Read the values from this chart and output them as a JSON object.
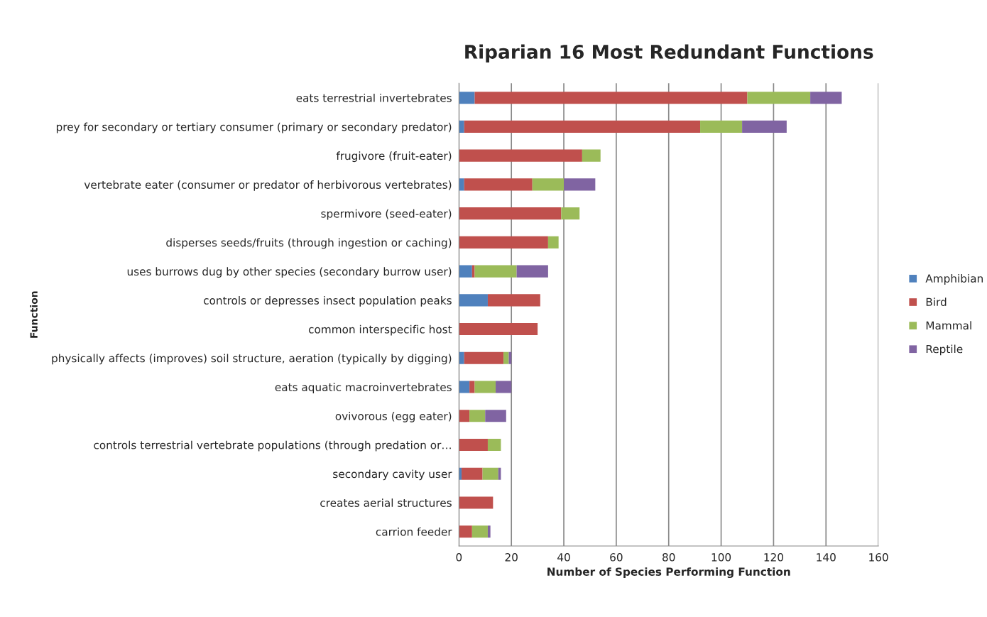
{
  "chart_data": {
    "type": "bar",
    "orientation": "horizontal",
    "stacked": true,
    "title": "Riparian 16 Most Redundant Functions",
    "xlabel": "Number of Species Performing Function",
    "ylabel": "Function",
    "categories": [
      "eats terrestrial invertebrates",
      "prey for secondary or tertiary consumer (primary or secondary predator)",
      "frugivore (fruit-eater)",
      "vertebrate eater (consumer or predator of herbivorous vertebrates)",
      "spermivore (seed-eater)",
      "disperses seeds/fruits (through ingestion or caching)",
      "uses burrows dug by other species (secondary burrow user)",
      "controls or depresses insect population peaks",
      "common interspecific host",
      "physically affects (improves) soil structure, aeration (typically by digging)",
      "eats aquatic macroinvertebrates",
      "ovivorous (egg eater)",
      "controls terrestrial vertebrate populations (through predation or…",
      "secondary cavity user",
      "creates aerial structures",
      "carrion feeder"
    ],
    "series": [
      {
        "name": "Amphibian",
        "color": "#4f81bd",
        "values": [
          6,
          2,
          0,
          2,
          0,
          0,
          5,
          11,
          0,
          2,
          4,
          0,
          0,
          1,
          0,
          0
        ]
      },
      {
        "name": "Bird",
        "color": "#c0504d",
        "values": [
          104,
          90,
          47,
          26,
          39,
          34,
          1,
          20,
          30,
          15,
          2,
          4,
          11,
          8,
          13,
          5
        ]
      },
      {
        "name": "Mammal",
        "color": "#9bbb59",
        "values": [
          24,
          16,
          7,
          12,
          7,
          4,
          16,
          0,
          0,
          2,
          8,
          6,
          5,
          6,
          0,
          6
        ]
      },
      {
        "name": "Reptile",
        "color": "#8064a2",
        "values": [
          12,
          17,
          0,
          12,
          0,
          0,
          12,
          0,
          0,
          1,
          6,
          8,
          0,
          1,
          0,
          1
        ]
      }
    ],
    "xlim": [
      0,
      160
    ],
    "xticks": [
      0,
      20,
      40,
      60,
      80,
      100,
      120,
      140,
      160
    ],
    "grid": "x",
    "legend": "right"
  }
}
